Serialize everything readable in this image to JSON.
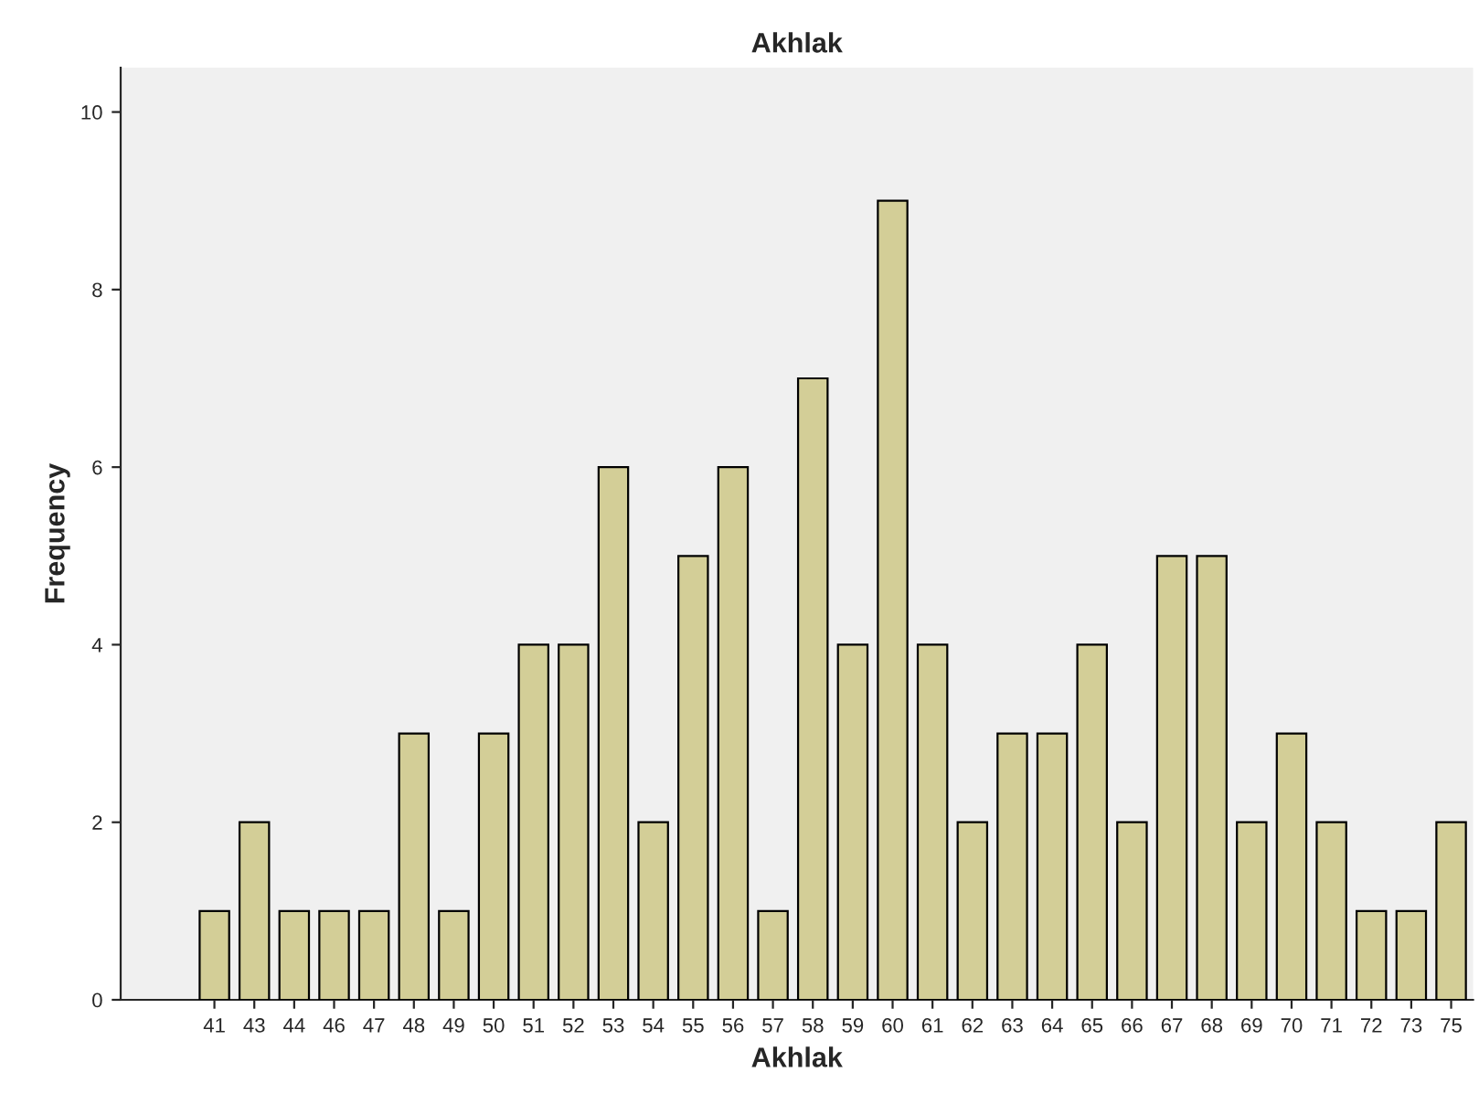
{
  "chart_data": {
    "type": "bar",
    "title": "Akhlak",
    "xlabel": "Akhlak",
    "ylabel": "Frequency",
    "categories": [
      "41",
      "43",
      "44",
      "46",
      "47",
      "48",
      "49",
      "50",
      "51",
      "52",
      "53",
      "54",
      "55",
      "56",
      "57",
      "58",
      "59",
      "60",
      "61",
      "62",
      "63",
      "64",
      "65",
      "66",
      "67",
      "68",
      "69",
      "70",
      "71",
      "72",
      "73",
      "75"
    ],
    "values": [
      1,
      2,
      1,
      1,
      1,
      3,
      1,
      3,
      4,
      4,
      6,
      2,
      5,
      6,
      1,
      7,
      4,
      9,
      4,
      2,
      3,
      3,
      4,
      2,
      5,
      5,
      2,
      3,
      2,
      1,
      1,
      2
    ],
    "color": "#d3ce97",
    "ylim": [
      0,
      10.5
    ],
    "yticks": [
      0,
      2,
      4,
      6,
      8,
      10
    ],
    "grid": false
  }
}
